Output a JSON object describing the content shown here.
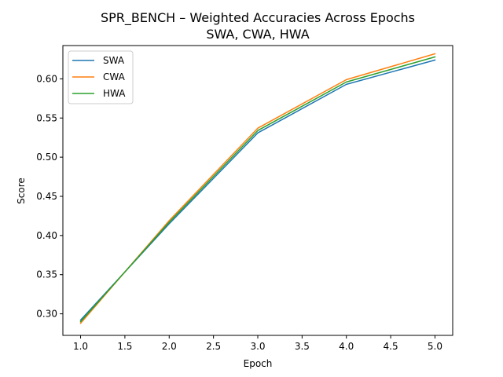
{
  "chart_data": {
    "type": "line",
    "title": "SPR_BENCH – Weighted Accuracies Across Epochs",
    "subtitle": "SWA, CWA, HWA",
    "xlabel": "Epoch",
    "ylabel": "Score",
    "x": [
      1,
      2,
      3,
      4,
      5
    ],
    "xlim": [
      0.8,
      5.2
    ],
    "ylim": [
      0.2725,
      0.6425
    ],
    "xticks": [
      "1.0",
      "1.5",
      "2.0",
      "2.5",
      "3.0",
      "3.5",
      "4.0",
      "4.5",
      "5.0"
    ],
    "yticks": [
      "0.30",
      "0.35",
      "0.40",
      "0.45",
      "0.50",
      "0.55",
      "0.60"
    ],
    "grid": false,
    "legend_position": "top-left",
    "series": [
      {
        "name": "SWA",
        "color": "#1f77b4",
        "values": [
          0.292,
          0.415,
          0.531,
          0.593,
          0.624
        ]
      },
      {
        "name": "CWA",
        "color": "#ff7f0e",
        "values": [
          0.288,
          0.419,
          0.537,
          0.599,
          0.632
        ]
      },
      {
        "name": "HWA",
        "color": "#2ca02c",
        "values": [
          0.29,
          0.417,
          0.534,
          0.596,
          0.628
        ]
      }
    ]
  }
}
